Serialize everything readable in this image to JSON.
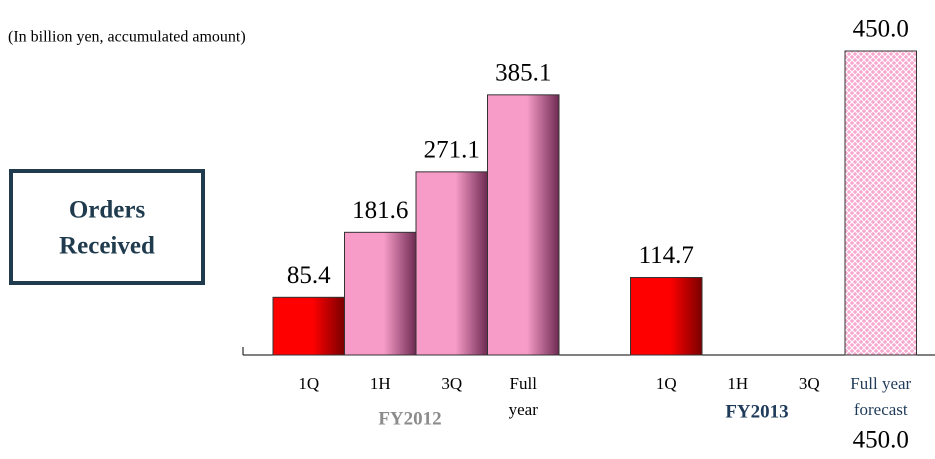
{
  "chart_data": {
    "type": "bar",
    "subtitle": "(In billion yen, accumulated amount)",
    "box_label": [
      "Orders",
      "Received"
    ],
    "groups": [
      {
        "name": "FY2012",
        "color": "#8c8c8c",
        "start": 0,
        "end": 3
      },
      {
        "name": "FY2013",
        "color": "#1f3b5a",
        "start": 4,
        "end": 7
      }
    ],
    "categories": [
      [
        "1Q"
      ],
      [
        "1H"
      ],
      [
        "3Q"
      ],
      [
        "Full",
        "year"
      ],
      [
        "1Q"
      ],
      [
        "1H"
      ],
      [
        "3Q"
      ],
      [
        "Full year",
        "forecast"
      ]
    ],
    "values": [
      85.4,
      181.6,
      271.1,
      385.1,
      114.7,
      null,
      null,
      450.0
    ],
    "value_labels": [
      "85.4",
      "181.6",
      "271.1",
      "385.1",
      "114.7",
      null,
      null,
      "450.0"
    ],
    "colors": [
      "#ff0000",
      "#f79cc8",
      "#f79cc8",
      "#f79cc8",
      "#ff0000",
      null,
      null,
      "#f7a8cf"
    ],
    "hatched": [
      false,
      false,
      false,
      false,
      false,
      false,
      false,
      true
    ],
    "forecast_note_index": 7,
    "ylim": [
      0,
      450
    ]
  }
}
